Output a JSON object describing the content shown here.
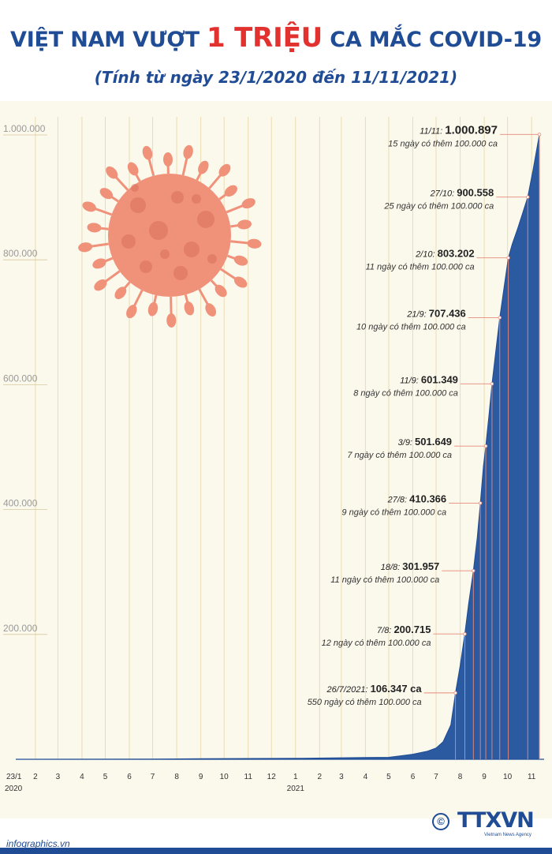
{
  "header": {
    "title_part1": "VIỆT NAM VƯỢT",
    "title_highlight": "1 TRIỆU",
    "title_part2": "CA MẮC COVID-19",
    "subtitle": "(Tính từ ngày 23/1/2020 đến 11/11/2021)"
  },
  "footer": {
    "site": "infographics.vn",
    "brand": "TTXVN",
    "brand_tagline": "Vietnam News Agency",
    "copyright_symbol": "©"
  },
  "colors": {
    "title": "#1f4c95",
    "highlight": "#e1322f",
    "area_fill": "#2c5aa0",
    "grid": "#ecdcb2",
    "leader": "#e88a7a",
    "virus": "#f0917a",
    "background": "#fbf8ec"
  },
  "icons": {
    "illustration": "coronavirus-icon",
    "brand_logo": "copyright-icon"
  },
  "chart_data": {
    "type": "area",
    "title": "VIỆT NAM VƯỢT 1 TRIỆU CA MẮC COVID-19",
    "subtitle": "(Tính từ ngày 23/1/2020 đến 11/11/2021)",
    "xlabel": "",
    "ylabel": "",
    "x_axis_type": "date",
    "xlim": [
      "2020-01-23",
      "2021-11-11"
    ],
    "ylim": [
      0,
      1000000
    ],
    "grid": true,
    "legend": "none",
    "y_ticks": [
      {
        "value": 200000,
        "label": "200.000"
      },
      {
        "value": 400000,
        "label": "400.000"
      },
      {
        "value": 600000,
        "label": "600.000"
      },
      {
        "value": 800000,
        "label": "800.000"
      },
      {
        "value": 1000000,
        "label": "1.000.000"
      }
    ],
    "x_ticks": [
      {
        "date": "2020-01-23",
        "label": "23/1",
        "sub": "2020"
      },
      {
        "date": "2020-02-01",
        "label": "2"
      },
      {
        "date": "2020-03-01",
        "label": "3"
      },
      {
        "date": "2020-04-01",
        "label": "4"
      },
      {
        "date": "2020-05-01",
        "label": "5"
      },
      {
        "date": "2020-06-01",
        "label": "6"
      },
      {
        "date": "2020-07-01",
        "label": "7"
      },
      {
        "date": "2020-08-01",
        "label": "8"
      },
      {
        "date": "2020-09-01",
        "label": "9"
      },
      {
        "date": "2020-10-01",
        "label": "10"
      },
      {
        "date": "2020-11-01",
        "label": "11"
      },
      {
        "date": "2020-12-01",
        "label": "12"
      },
      {
        "date": "2021-01-01",
        "label": "1",
        "sub": "2021"
      },
      {
        "date": "2021-02-01",
        "label": "2"
      },
      {
        "date": "2021-03-01",
        "label": "3"
      },
      {
        "date": "2021-04-01",
        "label": "4"
      },
      {
        "date": "2021-05-01",
        "label": "5"
      },
      {
        "date": "2021-06-01",
        "label": "6"
      },
      {
        "date": "2021-07-01",
        "label": "7"
      },
      {
        "date": "2021-08-01",
        "label": "8"
      },
      {
        "date": "2021-09-01",
        "label": "9"
      },
      {
        "date": "2021-10-01",
        "label": "10"
      },
      {
        "date": "2021-11-01",
        "label": "11"
      }
    ],
    "series": [
      {
        "x": [
          "2020-01-23",
          "2020-07-01",
          "2020-09-01",
          "2021-01-01",
          "2021-04-01",
          "2021-05-01",
          "2021-06-01",
          "2021-06-20",
          "2021-07-01",
          "2021-07-10",
          "2021-07-20",
          "2021-07-26",
          "2021-08-01",
          "2021-08-07",
          "2021-08-12",
          "2021-08-18",
          "2021-08-23",
          "2021-08-27",
          "2021-08-31",
          "2021-09-03",
          "2021-09-07",
          "2021-09-11",
          "2021-09-16",
          "2021-09-21",
          "2021-09-27",
          "2021-10-02",
          "2021-10-07",
          "2021-10-14",
          "2021-10-20",
          "2021-10-27",
          "2021-11-03",
          "2021-11-11"
        ],
        "values": [
          0,
          300,
          1000,
          1500,
          2800,
          3200,
          8000,
          13000,
          18000,
          28000,
          55000,
          106347,
          150000,
          200715,
          250000,
          301957,
          355000,
          410366,
          470000,
          501649,
          550000,
          601349,
          655000,
          707436,
          760000,
          803202,
          825000,
          850000,
          873000,
          900558,
          945000,
          1000897
        ]
      }
    ],
    "annotations": [
      {
        "date": "2021-07-26",
        "date_label": "26/7/2021",
        "value": 106347,
        "value_label": "106.347",
        "suffix": " ca",
        "note": "550 ngày có thêm 100.000 ca"
      },
      {
        "date": "2021-08-07",
        "date_label": "7/8",
        "value": 200715,
        "value_label": "200.715",
        "suffix": "",
        "note": "12 ngày có thêm 100.000 ca"
      },
      {
        "date": "2021-08-18",
        "date_label": "18/8",
        "value": 301957,
        "value_label": "301.957",
        "suffix": "",
        "note": "11 ngày có thêm 100.000 ca"
      },
      {
        "date": "2021-08-27",
        "date_label": "27/8",
        "value": 410366,
        "value_label": "410.366",
        "suffix": "",
        "note": "9 ngày có thêm 100.000 ca"
      },
      {
        "date": "2021-09-03",
        "date_label": "3/9",
        "value": 501649,
        "value_label": "501.649",
        "suffix": "",
        "note": "7 ngày có thêm 100.000 ca"
      },
      {
        "date": "2021-09-11",
        "date_label": "11/9",
        "value": 601349,
        "value_label": "601.349",
        "suffix": "",
        "note": "8 ngày có thêm 100.000 ca"
      },
      {
        "date": "2021-09-21",
        "date_label": "21/9",
        "value": 707436,
        "value_label": "707.436",
        "suffix": "",
        "note": "10 ngày có thêm 100.000 ca"
      },
      {
        "date": "2021-10-02",
        "date_label": "2/10",
        "value": 803202,
        "value_label": "803.202",
        "suffix": "",
        "note": "11 ngày có thêm 100.000 ca"
      },
      {
        "date": "2021-10-27",
        "date_label": "27/10",
        "value": 900558,
        "value_label": "900.558",
        "suffix": "",
        "note": "25 ngày có thêm 100.000 ca"
      },
      {
        "date": "2021-11-11",
        "date_label": "11/11",
        "value": 1000897,
        "value_label": "1.000.897",
        "suffix": "",
        "note": "15 ngày có thêm 100.000 ca"
      }
    ]
  }
}
